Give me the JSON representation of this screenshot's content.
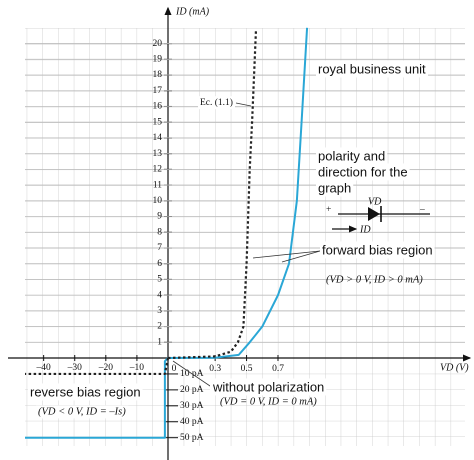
{
  "chart_data": {
    "type": "line",
    "y_label": "ID (mA)",
    "x_label": "VD (V)",
    "xlim": [
      0,
      1.89
    ],
    "ylim": [
      0,
      21.5
    ],
    "x2lim": [
      -46,
      0
    ],
    "y2lim": [
      -64,
      0
    ],
    "xticks": [
      0,
      0.3,
      0.5,
      0.7
    ],
    "x2ticks": [
      {
        "value": -10,
        "label": "–10"
      },
      {
        "value": -20,
        "label": "–20"
      },
      {
        "value": -30,
        "label": "–30"
      },
      {
        "value": -40,
        "label": "–40"
      }
    ],
    "yticks": [
      1,
      2,
      3,
      4,
      5,
      6,
      7,
      8,
      9,
      10,
      11,
      12,
      13,
      14,
      15,
      16,
      17,
      18,
      19,
      20
    ],
    "y2ticks": [
      {
        "value": -10,
        "label": "10 pA"
      },
      {
        "value": -20,
        "label": "20 pA"
      },
      {
        "value": -30,
        "label": "30 pA"
      },
      {
        "value": -40,
        "label": "40 pA"
      },
      {
        "value": -50,
        "label": "50 pA"
      }
    ],
    "grid": true,
    "series": [
      {
        "color": "#2aa7d6",
        "style": "solid",
        "x": [
          0,
          0.3,
          0.45,
          0.52,
          0.6,
          0.7,
          0.77,
          0.82,
          0.85,
          0.885
        ],
        "values": [
          0,
          0.02,
          0.2,
          1,
          2,
          4,
          6,
          10,
          15,
          21
        ]
      },
      {
        "color": "#222222",
        "style": "dotted",
        "x": [
          0,
          0.3,
          0.4,
          0.445,
          0.48,
          0.5,
          0.52,
          0.535,
          0.56
        ],
        "values": [
          0,
          0.1,
          0.4,
          1,
          2,
          6,
          12,
          15,
          20.9
        ]
      },
      {
        "color": "#2aa7d6",
        "style": "solid",
        "axis": "y2",
        "x": [
          0,
          -1,
          -1,
          -46
        ],
        "values": [
          0,
          -2,
          -50,
          -50
        ]
      },
      {
        "color": "#222222",
        "style": "dotted",
        "axis": "y2",
        "x": [
          0,
          -1,
          -46
        ],
        "values": [
          0,
          -10,
          -10
        ]
      }
    ],
    "eq_label": "Ec. (1.1)",
    "unit_note": "royal business unit",
    "polarity_note": [
      "polarity and",
      "direction for the",
      "graph"
    ],
    "forward_note": "forward bias region",
    "forward_condition": "(VD > 0 V,  ID > 0 mA)",
    "reverse_note": "reverse bias region",
    "reverse_condition": "(VD < 0 V, ID = –Is)",
    "zero_note": "without polarization",
    "zero_condition": "(VD = 0 V, ID = 0 mA)",
    "diode": {
      "plus": "+",
      "minus": "–",
      "voltage": "VD",
      "current": "ID"
    }
  }
}
